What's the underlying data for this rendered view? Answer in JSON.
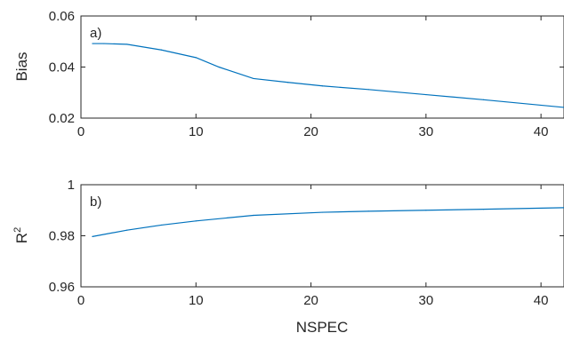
{
  "chart_data": [
    {
      "type": "line",
      "panel_label": "a)",
      "ylabel": "Bias",
      "xlabel": "",
      "xlim": [
        0,
        42
      ],
      "ylim": [
        0.02,
        0.06
      ],
      "xticks": [
        0,
        10,
        20,
        30,
        40
      ],
      "xtick_labels": [
        "0",
        "10",
        "20",
        "30",
        "40"
      ],
      "yticks": [
        0.02,
        0.04,
        0.06
      ],
      "ytick_labels": [
        "0.02",
        "0.04",
        "0.06"
      ],
      "grid": false,
      "color": "#0072BD",
      "series": [
        {
          "x": [
            1,
            2,
            4,
            7,
            10,
            12,
            15,
            18,
            21,
            25,
            30,
            35,
            42
          ],
          "values": [
            0.0492,
            0.0492,
            0.0489,
            0.0467,
            0.0437,
            0.04,
            0.0355,
            0.034,
            0.0326,
            0.0312,
            0.0292,
            0.0272,
            0.0242
          ]
        }
      ]
    },
    {
      "type": "line",
      "panel_label": "b)",
      "ylabel": "R",
      "ylabel_superscript": "2",
      "xlabel": "NSPEC",
      "xlim": [
        0,
        42
      ],
      "ylim": [
        0.96,
        1.0
      ],
      "xticks": [
        0,
        10,
        20,
        30,
        40
      ],
      "xtick_labels": [
        "0",
        "10",
        "20",
        "30",
        "40"
      ],
      "yticks": [
        0.96,
        0.98,
        1.0
      ],
      "ytick_labels": [
        "0.96",
        "0.98",
        "1"
      ],
      "grid": false,
      "color": "#0072BD",
      "series": [
        {
          "x": [
            1,
            4,
            7,
            10,
            15,
            21,
            25,
            30,
            35,
            42
          ],
          "values": [
            0.9797,
            0.9822,
            0.9842,
            0.9858,
            0.988,
            0.9892,
            0.9896,
            0.99,
            0.9904,
            0.991
          ]
        }
      ]
    }
  ]
}
